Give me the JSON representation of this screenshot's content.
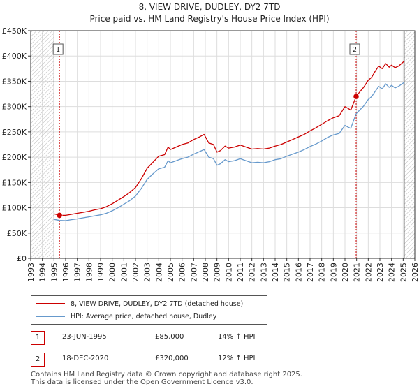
{
  "header": {
    "title": "8, VIEW DRIVE, DUDLEY, DY2 7TD",
    "subtitle": "Price paid vs. HM Land Registry's House Price Index (HPI)"
  },
  "chart_data": {
    "type": "line",
    "title": "8, VIEW DRIVE, DUDLEY, DY2 7TD",
    "subtitle": "Price paid vs. HM Land Registry's House Price Index (HPI)",
    "xlabel": "",
    "ylabel": "",
    "xlim": [
      1993,
      2026
    ],
    "ylim": [
      0,
      450000
    ],
    "grid": true,
    "x_ticks": [
      1993,
      1994,
      1995,
      1996,
      1997,
      1998,
      1999,
      2000,
      2001,
      2002,
      2003,
      2004,
      2005,
      2006,
      2007,
      2008,
      2009,
      2010,
      2011,
      2012,
      2013,
      2014,
      2015,
      2016,
      2017,
      2018,
      2019,
      2020,
      2021,
      2022,
      2023,
      2024,
      2025,
      2026
    ],
    "y_ticks": [
      0,
      50000,
      100000,
      150000,
      200000,
      250000,
      300000,
      350000,
      400000,
      450000
    ],
    "y_tick_labels": [
      "£0",
      "£50K",
      "£100K",
      "£150K",
      "£200K",
      "£250K",
      "£300K",
      "£350K",
      "£400K",
      "£450K"
    ],
    "hatched_ranges": [
      [
        1993,
        1995.0
      ],
      [
        2025.1,
        2026
      ]
    ],
    "colors": {
      "property": "#cc0000",
      "hpi": "#6699cc",
      "marker_line": "#cc0000"
    },
    "series": [
      {
        "name": "8, VIEW DRIVE, DUDLEY, DY2 7TD (detached house)",
        "color": "#cc0000",
        "x": [
          1995.0,
          1995.47,
          1996.0,
          1996.5,
          1997.0,
          1997.5,
          1998.0,
          1998.5,
          1999.0,
          1999.5,
          2000.0,
          2000.5,
          2001.0,
          2001.5,
          2002.0,
          2002.5,
          2003.0,
          2003.5,
          2004.0,
          2004.5,
          2004.8,
          2005.0,
          2005.5,
          2006.0,
          2006.5,
          2007.0,
          2007.5,
          2007.9,
          2008.3,
          2008.7,
          2009.0,
          2009.3,
          2009.7,
          2010.0,
          2010.5,
          2011.0,
          2011.5,
          2012.0,
          2012.5,
          2013.0,
          2013.5,
          2014.0,
          2014.5,
          2015.0,
          2015.5,
          2016.0,
          2016.5,
          2017.0,
          2017.5,
          2018.0,
          2018.5,
          2019.0,
          2019.5,
          2020.0,
          2020.3,
          2020.5,
          2020.96,
          2021.3,
          2021.6,
          2022.0,
          2022.3,
          2022.6,
          2022.9,
          2023.2,
          2023.5,
          2023.8,
          2024.0,
          2024.3,
          2024.6,
          2024.9,
          2025.1
        ],
        "values": [
          88000,
          85000,
          85000,
          87000,
          89000,
          91000,
          93000,
          96000,
          98000,
          102000,
          108000,
          115000,
          122000,
          130000,
          140000,
          157000,
          178000,
          190000,
          202000,
          205000,
          220000,
          215000,
          220000,
          225000,
          228000,
          235000,
          240000,
          245000,
          228000,
          225000,
          210000,
          213000,
          222000,
          218000,
          220000,
          224000,
          220000,
          216000,
          217000,
          216000,
          218000,
          222000,
          225000,
          230000,
          235000,
          240000,
          245000,
          252000,
          258000,
          265000,
          272000,
          278000,
          282000,
          300000,
          296000,
          293000,
          320000,
          330000,
          338000,
          352000,
          358000,
          370000,
          380000,
          375000,
          385000,
          378000,
          382000,
          377000,
          380000,
          386000,
          390000
        ]
      },
      {
        "name": "HPI: Average price, detached house, Dudley",
        "color": "#6699cc",
        "x": [
          1995.0,
          1995.47,
          1996.0,
          1996.5,
          1997.0,
          1997.5,
          1998.0,
          1998.5,
          1999.0,
          1999.5,
          2000.0,
          2000.5,
          2001.0,
          2001.5,
          2002.0,
          2002.5,
          2003.0,
          2003.5,
          2004.0,
          2004.5,
          2004.8,
          2005.0,
          2005.5,
          2006.0,
          2006.5,
          2007.0,
          2007.5,
          2007.9,
          2008.3,
          2008.7,
          2009.0,
          2009.3,
          2009.7,
          2010.0,
          2010.5,
          2011.0,
          2011.5,
          2012.0,
          2012.5,
          2013.0,
          2013.5,
          2014.0,
          2014.5,
          2015.0,
          2015.5,
          2016.0,
          2016.5,
          2017.0,
          2017.5,
          2018.0,
          2018.5,
          2019.0,
          2019.5,
          2020.0,
          2020.3,
          2020.5,
          2020.96,
          2021.3,
          2021.6,
          2022.0,
          2022.3,
          2022.6,
          2022.9,
          2023.2,
          2023.5,
          2023.8,
          2024.0,
          2024.3,
          2024.6,
          2024.9,
          2025.1
        ],
        "values": [
          77000,
          75000,
          74500,
          76500,
          78000,
          80000,
          82000,
          84000,
          86000,
          89000,
          94000,
          100000,
          107000,
          114000,
          123000,
          138000,
          156000,
          167000,
          177000,
          180000,
          193000,
          189000,
          193000,
          197000,
          200000,
          206000,
          211000,
          215000,
          200000,
          197000,
          184000,
          187000,
          195000,
          191000,
          193000,
          197000,
          193000,
          189000,
          190000,
          189000,
          191000,
          195000,
          197000,
          202000,
          206000,
          210000,
          215000,
          221000,
          226000,
          232000,
          239000,
          244000,
          247000,
          263000,
          259000,
          257000,
          286000,
          294000,
          301000,
          314000,
          320000,
          330000,
          340000,
          335000,
          345000,
          338000,
          342000,
          337000,
          340000,
          345000,
          348000
        ]
      }
    ],
    "annotations": [
      {
        "label": "1",
        "x": 1995.47,
        "y": 85000
      },
      {
        "label": "2",
        "x": 2020.96,
        "y": 320000
      }
    ]
  },
  "legend": {
    "property_label": "8, VIEW DRIVE, DUDLEY, DY2 7TD (detached house)",
    "hpi_label": "HPI: Average price, detached house, Dudley"
  },
  "transactions": [
    {
      "id": "1",
      "date": "23-JUN-1995",
      "price": "£85,000",
      "hpi": "14% ↑ HPI"
    },
    {
      "id": "2",
      "date": "18-DEC-2020",
      "price": "£320,000",
      "hpi": "12% ↑ HPI"
    }
  ],
  "footer": {
    "line1": "Contains HM Land Registry data © Crown copyright and database right 2025.",
    "line2": "This data is licensed under the Open Government Licence v3.0."
  }
}
